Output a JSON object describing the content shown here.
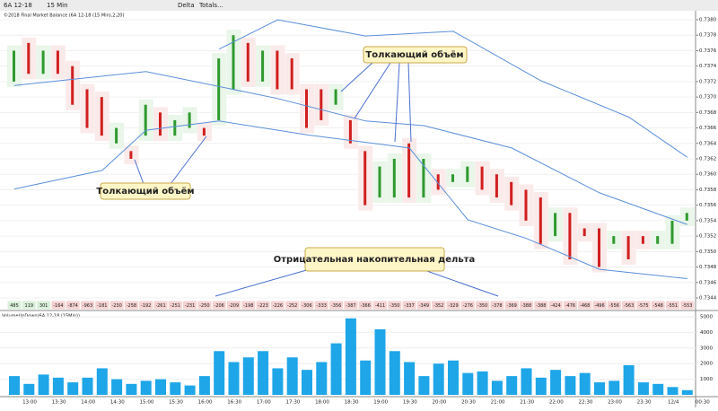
{
  "toolbar": {
    "instrument": "6A 12-18",
    "interval": "15 Min",
    "study": "Delta",
    "totals": "Totals..."
  },
  "chart_header": "©2018 Final Market Balance  (6A 12-18 (15 Min),2,20)",
  "annotations": {
    "push_top": "Толкающий объём",
    "push_bottom": "Толкающий объём",
    "cum_delta": "Отрицательная накопительная дельта"
  },
  "chart_data": [
    {
      "type": "candlestick",
      "open": [
        0.7372,
        0.7377,
        0.7373,
        0.7376,
        0.7374,
        0.7371,
        0.737,
        0.7364,
        0.7363,
        0.7365,
        0.7368,
        0.7365,
        0.7366,
        0.7366,
        0.7367,
        0.7371,
        0.7377,
        0.7372,
        0.7376,
        0.7375,
        0.7371,
        0.7371,
        0.7369,
        0.7367,
        0.7363,
        0.7357,
        0.7357,
        0.7364,
        0.7357,
        0.736,
        0.7359,
        0.7359,
        0.7361,
        0.736,
        0.7359,
        0.7358,
        0.7357,
        0.7352,
        0.7355,
        0.7353,
        0.7353,
        0.7351,
        0.7352,
        0.7352,
        0.7351,
        0.7351,
        0.7354
      ],
      "close": [
        0.7376,
        0.7373,
        0.7376,
        0.7373,
        0.7369,
        0.7366,
        0.7365,
        0.7366,
        0.7362,
        0.7369,
        0.7365,
        0.7367,
        0.7368,
        0.7365,
        0.7375,
        0.7378,
        0.7372,
        0.7376,
        0.7371,
        0.7371,
        0.7366,
        0.7367,
        0.7371,
        0.7364,
        0.7356,
        0.7361,
        0.7362,
        0.7357,
        0.7362,
        0.7358,
        0.736,
        0.7361,
        0.7358,
        0.7357,
        0.7356,
        0.7354,
        0.7351,
        0.7355,
        0.7349,
        0.7352,
        0.7348,
        0.7352,
        0.7349,
        0.7351,
        0.7352,
        0.7354,
        0.7355
      ],
      "up_color": "#2e9a2e",
      "down_color": "#d11f1f",
      "bands": [
        {
          "name": "upper",
          "color": "#5b8fd9",
          "x": [
            14,
            18,
            24,
            30,
            36,
            42,
            46
          ],
          "values": [
            0.73762,
            0.738,
            0.73779,
            0.73785,
            0.73721,
            0.73674,
            0.73622
          ]
        },
        {
          "name": "middle",
          "color": "#5b8fd9",
          "x": [
            0,
            9,
            18,
            24,
            28,
            34,
            40,
            46
          ],
          "values": [
            0.73715,
            0.73733,
            0.73698,
            0.73669,
            0.73663,
            0.73634,
            0.73576,
            0.73535
          ]
        },
        {
          "name": "lower",
          "color": "#5b8fd9",
          "x": [
            0,
            6,
            9,
            14,
            20,
            27,
            31,
            35,
            40,
            46
          ],
          "values": [
            0.73581,
            0.73605,
            0.73657,
            0.73669,
            0.73651,
            0.73634,
            0.73541,
            0.73517,
            0.73477,
            0.73465
          ]
        }
      ],
      "ylim": [
        0.7344,
        0.738
      ],
      "yticks": [
        {
          "value": 0.738,
          "label": "0.7380"
        },
        0.7378,
        0.7376,
        0.7374,
        0.7372,
        {
          "value": 0.737,
          "label": "0.7370"
        },
        0.7368,
        0.7366,
        0.7364,
        0.7362,
        {
          "value": 0.736,
          "label": "0.7360"
        },
        0.7358,
        0.7356,
        0.7354,
        0.7352,
        {
          "value": 0.735,
          "label": "0.7350"
        },
        0.7348,
        0.7346,
        0.7344
      ]
    },
    {
      "type": "delta",
      "values": [
        485,
        119,
        301,
        -164,
        -874,
        -963,
        -181,
        -230,
        -258,
        -192,
        -261,
        -251,
        -231,
        -250,
        -206,
        -209,
        -198,
        -223,
        -226,
        -252,
        -306,
        -333,
        -356,
        -387,
        -366,
        -411,
        -350,
        -337,
        -349,
        -352,
        -329,
        -276,
        -350,
        -378,
        -369,
        -388,
        -388,
        -424,
        -476,
        -468,
        -496,
        -556,
        -563,
        -575,
        -548,
        -551,
        -553
      ]
    },
    {
      "type": "bar",
      "title": "VolumeUpDown(6A 12-18 (15Min))",
      "color": "#1ea6e8",
      "values": [
        1200,
        700,
        1300,
        1100,
        800,
        1100,
        1700,
        1000,
        700,
        900,
        1000,
        800,
        600,
        1200,
        2800,
        2100,
        2400,
        2800,
        1700,
        2400,
        1600,
        2100,
        3300,
        4900,
        2200,
        4200,
        2800,
        2100,
        1200,
        2000,
        2200,
        1400,
        1500,
        900,
        1200,
        1700,
        1100,
        1600,
        1200,
        1400,
        800,
        900,
        1900,
        800,
        700,
        500,
        300
      ],
      "ylim": [
        0,
        5000
      ],
      "yticks": [
        1000,
        2000,
        3000,
        4000,
        5000
      ],
      "time_labels": [
        "13:00",
        "13:30",
        "14:00",
        "14:30",
        "15:00",
        "15:30",
        "16:00",
        "16:30",
        "17:00",
        "17:30",
        "18:00",
        "18:30",
        "19:00",
        "19:30",
        "20:00",
        "20:30",
        "21:00",
        "21:30",
        "22:00",
        "22:30",
        "23:00",
        "23:30",
        "12/4",
        "00:30"
      ]
    }
  ]
}
